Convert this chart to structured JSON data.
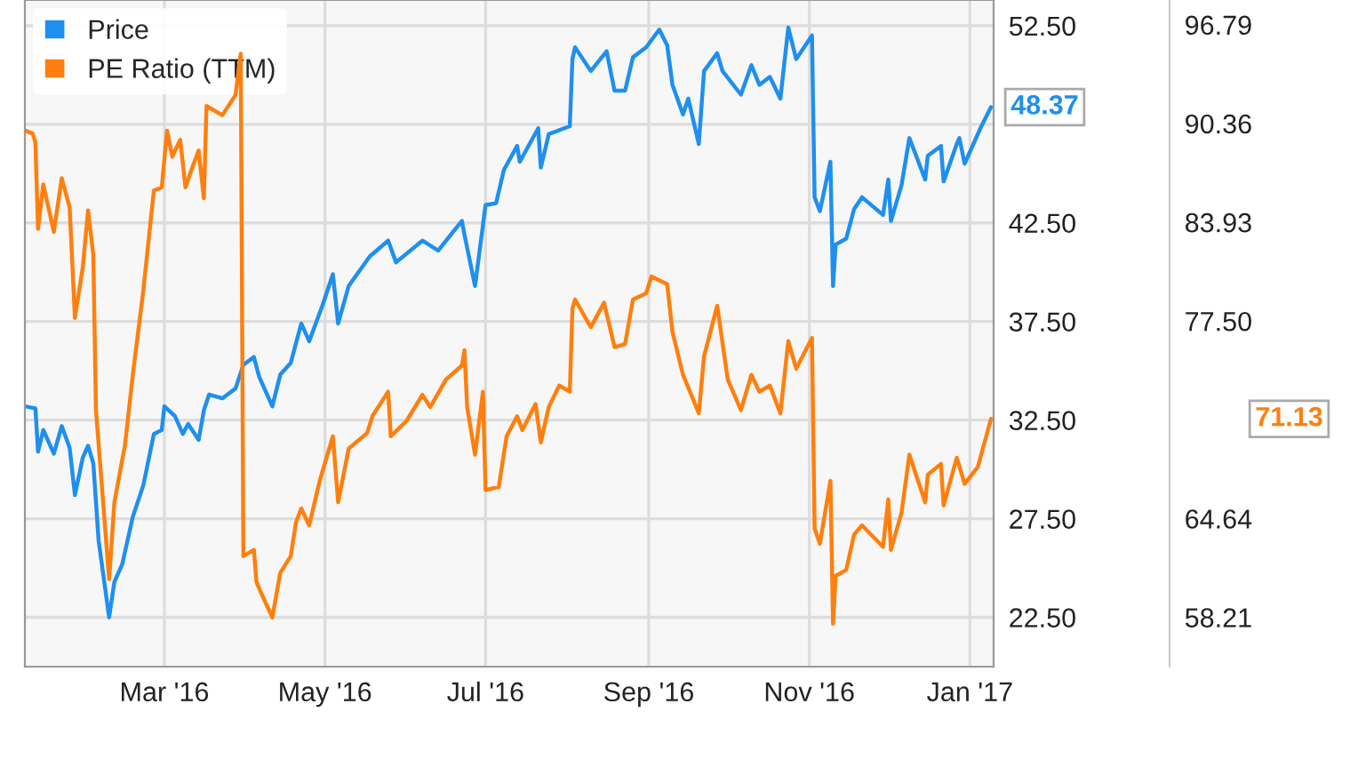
{
  "chart_data": {
    "type": "line",
    "series": [
      {
        "name": "Price",
        "color": "#1f8fef",
        "x": [
          "2016-01-08",
          "2016-01-12",
          "2016-01-13",
          "2016-01-15",
          "2016-01-19",
          "2016-01-22",
          "2016-01-25",
          "2016-01-27",
          "2016-01-30",
          "2016-02-01",
          "2016-02-03",
          "2016-02-05",
          "2016-02-09",
          "2016-02-11",
          "2016-02-14",
          "2016-02-18",
          "2016-02-22",
          "2016-02-26",
          "2016-02-29",
          "2016-03-01",
          "2016-03-05",
          "2016-03-08",
          "2016-03-10",
          "2016-03-14",
          "2016-03-16",
          "2016-03-18",
          "2016-03-23",
          "2016-03-28",
          "2016-03-31",
          "2016-04-04",
          "2016-04-06",
          "2016-04-11",
          "2016-04-14",
          "2016-04-18",
          "2016-04-22",
          "2016-04-25",
          "2016-04-30",
          "2016-05-04",
          "2016-05-06",
          "2016-05-10",
          "2016-05-18",
          "2016-05-25",
          "2016-05-28",
          "2016-06-07",
          "2016-06-13",
          "2016-06-22",
          "2016-06-23",
          "2016-06-27",
          "2016-07-01",
          "2016-07-05",
          "2016-07-08",
          "2016-07-13",
          "2016-07-14",
          "2016-07-21",
          "2016-07-22",
          "2016-07-25",
          "2016-08-02",
          "2016-08-03",
          "2016-08-04",
          "2016-08-10",
          "2016-08-16",
          "2016-08-19",
          "2016-08-23",
          "2016-08-26",
          "2016-08-31",
          "2016-09-05",
          "2016-09-08",
          "2016-09-10",
          "2016-09-14",
          "2016-09-16",
          "2016-09-20",
          "2016-09-22",
          "2016-09-27",
          "2016-09-29",
          "2016-10-06",
          "2016-10-10",
          "2016-10-13",
          "2016-10-17",
          "2016-10-21",
          "2016-10-24",
          "2016-10-27",
          "2016-11-02",
          "2016-11-03",
          "2016-11-05",
          "2016-11-09",
          "2016-11-10",
          "2016-11-11",
          "2016-11-15",
          "2016-11-18",
          "2016-11-21",
          "2016-11-29",
          "2016-12-01",
          "2016-12-02",
          "2016-12-06",
          "2016-12-09",
          "2016-12-15",
          "2016-12-16",
          "2016-12-21",
          "2016-12-22",
          "2016-12-27",
          "2016-12-28",
          "2016-12-30",
          "2017-01-05",
          "2017-01-09"
        ],
        "values": [
          33.2,
          33.1,
          30.9,
          32.0,
          30.8,
          32.2,
          31.1,
          28.7,
          30.6,
          31.2,
          30.3,
          26.4,
          22.5,
          24.3,
          25.2,
          27.6,
          29.2,
          31.8,
          32.0,
          33.2,
          32.7,
          31.8,
          32.3,
          31.5,
          33.0,
          33.8,
          33.6,
          34.1,
          35.3,
          35.7,
          34.7,
          33.2,
          34.8,
          35.4,
          37.4,
          36.5,
          38.3,
          39.9,
          37.4,
          39.3,
          40.8,
          41.6,
          40.5,
          41.6,
          41.1,
          42.6,
          41.9,
          39.3,
          43.4,
          43.5,
          45.2,
          46.4,
          45.6,
          47.3,
          45.3,
          47.0,
          47.4,
          50.8,
          51.4,
          50.2,
          51.2,
          49.2,
          49.2,
          50.9,
          51.4,
          52.3,
          51.5,
          49.5,
          48.0,
          48.8,
          46.5,
          50.2,
          51.1,
          50.2,
          49.0,
          50.5,
          49.5,
          49.9,
          48.8,
          52.4,
          50.8,
          52.0,
          43.8,
          43.1,
          45.6,
          39.3,
          41.4,
          41.7,
          43.2,
          43.8,
          42.9,
          44.7,
          42.6,
          44.4,
          46.8,
          44.7,
          45.9,
          46.4,
          44.6,
          46.5,
          46.8,
          45.5,
          47.3,
          48.37
        ]
      },
      {
        "name": "PE Ratio (TTM)",
        "color": "#ff7f0e",
        "axis": "y2",
        "x": [
          "2016-01-08",
          "2016-01-11",
          "2016-01-12",
          "2016-01-13",
          "2016-01-15",
          "2016-01-19",
          "2016-01-22",
          "2016-01-25",
          "2016-01-27",
          "2016-01-30",
          "2016-02-01",
          "2016-02-03",
          "2016-02-04",
          "2016-02-09",
          "2016-02-11",
          "2016-02-15",
          "2016-02-18",
          "2016-02-22",
          "2016-02-26",
          "2016-02-29",
          "2016-03-02",
          "2016-03-04",
          "2016-03-07",
          "2016-03-09",
          "2016-03-11",
          "2016-03-14",
          "2016-03-16",
          "2016-03-17",
          "2016-03-23",
          "2016-03-28",
          "2016-03-30",
          "2016-03-31",
          "2016-04-04",
          "2016-04-05",
          "2016-04-07",
          "2016-04-11",
          "2016-04-14",
          "2016-04-18",
          "2016-04-20",
          "2016-04-22",
          "2016-04-25",
          "2016-04-29",
          "2016-05-04",
          "2016-05-06",
          "2016-05-10",
          "2016-05-17",
          "2016-05-19",
          "2016-05-25",
          "2016-05-26",
          "2016-06-01",
          "2016-06-07",
          "2016-06-10",
          "2016-06-16",
          "2016-06-22",
          "2016-06-23",
          "2016-06-24",
          "2016-06-27",
          "2016-06-30",
          "2016-07-01",
          "2016-07-06",
          "2016-07-09",
          "2016-07-13",
          "2016-07-15",
          "2016-07-20",
          "2016-07-22",
          "2016-07-25",
          "2016-07-29",
          "2016-08-02",
          "2016-08-03",
          "2016-08-04",
          "2016-08-10",
          "2016-08-15",
          "2016-08-19",
          "2016-08-23",
          "2016-08-26",
          "2016-08-31",
          "2016-09-02",
          "2016-09-08",
          "2016-09-10",
          "2016-09-14",
          "2016-09-20",
          "2016-09-22",
          "2016-09-27",
          "2016-10-01",
          "2016-10-06",
          "2016-10-10",
          "2016-10-13",
          "2016-10-17",
          "2016-10-21",
          "2016-10-24",
          "2016-10-27",
          "2016-11-02",
          "2016-11-03",
          "2016-11-05",
          "2016-11-09",
          "2016-11-10",
          "2016-11-11",
          "2016-11-15",
          "2016-11-18",
          "2016-11-21",
          "2016-11-29",
          "2016-12-01",
          "2016-12-02",
          "2016-12-06",
          "2016-12-09",
          "2016-12-15",
          "2016-12-16",
          "2016-12-21",
          "2016-12-22",
          "2016-12-27",
          "2016-12-30",
          "2017-01-04",
          "2017-01-09"
        ],
        "values": [
          89.9,
          89.7,
          89.1,
          83.5,
          86.4,
          83.3,
          86.8,
          84.9,
          77.7,
          81.0,
          84.7,
          81.8,
          71.7,
          60.7,
          65.7,
          69.4,
          74.0,
          79.5,
          86.0,
          86.2,
          89.9,
          88.2,
          89.3,
          86.2,
          87.2,
          88.6,
          85.5,
          91.5,
          90.9,
          92.2,
          94.9,
          62.2,
          62.6,
          60.5,
          59.7,
          58.2,
          61.1,
          62.2,
          64.4,
          65.3,
          64.2,
          67.1,
          70.0,
          65.7,
          69.2,
          70.2,
          71.3,
          72.9,
          70.0,
          71.0,
          72.7,
          71.9,
          73.7,
          74.6,
          75.6,
          71.9,
          68.8,
          72.9,
          66.5,
          66.7,
          70.0,
          71.3,
          70.4,
          72.1,
          69.6,
          71.9,
          73.3,
          72.9,
          78.3,
          78.9,
          77.1,
          78.7,
          75.8,
          76.0,
          78.9,
          79.3,
          80.4,
          79.9,
          76.8,
          74.0,
          71.5,
          75.2,
          78.5,
          73.7,
          71.7,
          74.0,
          72.9,
          73.3,
          71.5,
          76.2,
          74.4,
          76.4,
          64.0,
          63.0,
          67.1,
          57.8,
          60.9,
          61.3,
          63.6,
          64.2,
          62.8,
          65.9,
          62.6,
          65.0,
          68.8,
          65.7,
          67.5,
          68.2,
          65.5,
          68.6,
          66.9,
          68.0,
          71.13
        ]
      }
    ],
    "xlim": [
      "2016-01-08",
      "2017-01-10"
    ],
    "xticks": [
      {
        "value": "2016-03-01",
        "label": "Mar '16"
      },
      {
        "value": "2016-05-01",
        "label": "May '16"
      },
      {
        "value": "2016-07-01",
        "label": "Jul '16"
      },
      {
        "value": "2016-09-01",
        "label": "Sep '16"
      },
      {
        "value": "2016-11-01",
        "label": "Nov '16"
      },
      {
        "value": "2017-01-01",
        "label": "Jan '17"
      }
    ],
    "ylim": [
      20.0,
      53.8
    ],
    "yticks": [
      {
        "value": 22.5,
        "label": "22.50"
      },
      {
        "value": 27.5,
        "label": "27.50"
      },
      {
        "value": 32.5,
        "label": "32.50"
      },
      {
        "value": 37.5,
        "label": "37.50"
      },
      {
        "value": 42.5,
        "label": "42.50"
      },
      {
        "value": 47.5,
        "label": null
      },
      {
        "value": 52.5,
        "label": "52.50"
      }
    ],
    "y2lim": [
      55.0,
      98.4
    ],
    "y2ticks": [
      58.21,
      64.64,
      {
        "value": 77.5,
        "label": "77.50"
      },
      83.93,
      90.36,
      96.79
    ],
    "annotations": [
      "48.37",
      "71.13"
    ],
    "grid": true,
    "legend": "top left"
  }
}
